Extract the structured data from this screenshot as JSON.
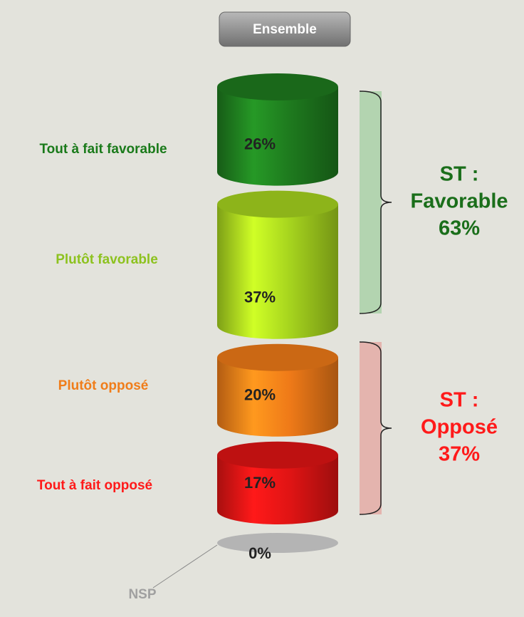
{
  "chart_data": {
    "type": "cylinder_stack",
    "title": "Ensemble",
    "categories": [
      "Tout à fait favorable",
      "Plutôt favorable",
      "Plutôt opposé",
      "Tout à fait opposé",
      "NSP"
    ],
    "values": [
      26,
      37,
      20,
      17,
      0
    ],
    "value_labels": [
      "26%",
      "37%",
      "20%",
      "17%",
      "0%"
    ],
    "colors": [
      "#1e7a1e",
      "#a6d41e",
      "#ef7a18",
      "#e01414",
      "#b4b4b4"
    ],
    "label_colors": [
      "#1a7a1a",
      "#8dc21f",
      "#f07d1a",
      "#ff1a1a",
      "#a0a0a0"
    ],
    "groups": [
      {
        "name_lines": [
          "ST :",
          "Favorable"
        ],
        "value": 63,
        "value_label": "63%",
        "color": "#1a6e1a",
        "band_color": "#b3d4b0"
      },
      {
        "name_lines": [
          "ST :",
          "Opposé"
        ],
        "value": 37,
        "value_label": "37%",
        "color": "#ff1a1a",
        "band_color": "#e4b4ae"
      }
    ]
  }
}
